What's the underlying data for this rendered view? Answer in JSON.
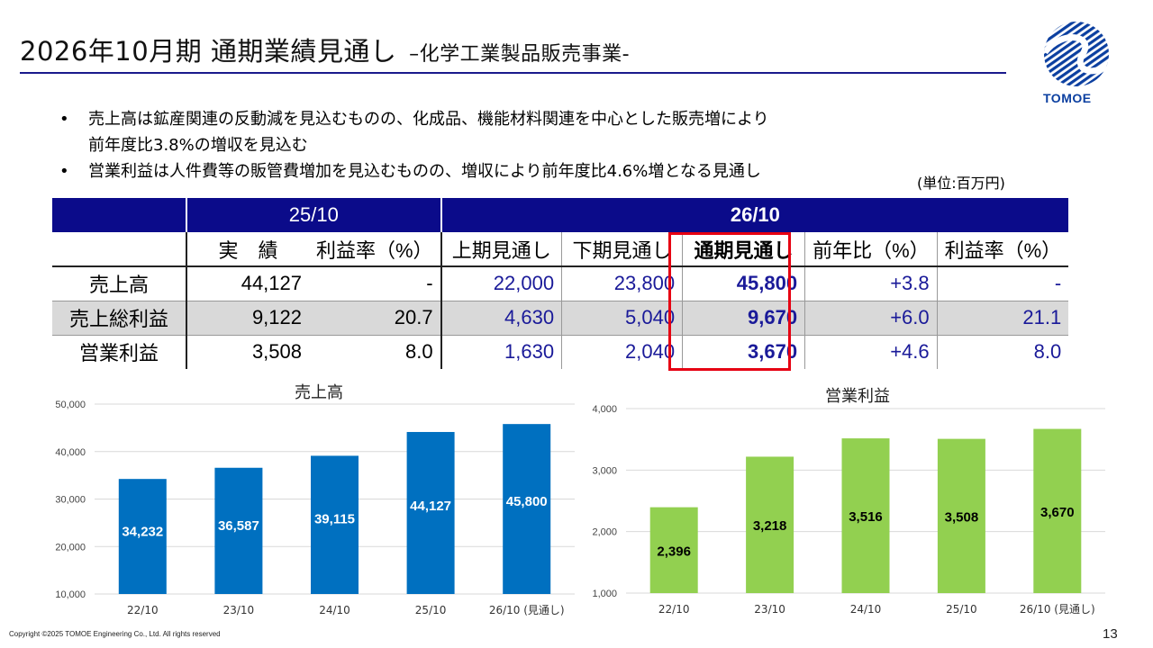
{
  "header": {
    "title": "2026年10月期 通期業績見通し",
    "subtitle": "–化学工業製品販売事業-"
  },
  "logo": {
    "text": "TOMOE",
    "color": "#0b3fa0"
  },
  "bullets": [
    "売上高は鉱産関連の反動減を見込むものの、化成品、機能材料関連を中心とした販売増により",
    "前年度比3.8%の増収を見込む",
    "営業利益は人件費等の販管費増加を見込むものの、増収により前年度比4.6%増となる見通し"
  ],
  "bullet_mark": "•",
  "unit": "(単位:百万円)",
  "table": {
    "group_headers": [
      "25/10",
      "26/10"
    ],
    "columns": [
      "実　績",
      "利益率（%）",
      "上期見通し",
      "下期見通し",
      "通期見通し",
      "前年比（%）",
      "利益率（%）"
    ],
    "rows": [
      {
        "label": "売上高",
        "cells": [
          "44,127",
          "-",
          "22,000",
          "23,800",
          "45,800",
          "+3.8",
          "-"
        ]
      },
      {
        "label": "売上総利益",
        "cells": [
          "9,122",
          "20.7",
          "4,630",
          "5,040",
          "9,670",
          "+6.0",
          "21.1"
        ]
      },
      {
        "label": "営業利益",
        "cells": [
          "3,508",
          "8.0",
          "1,630",
          "2,040",
          "3,670",
          "+4.6",
          "8.0"
        ]
      }
    ],
    "header_color": "#0b0b8a",
    "highlight_color": "#e60012"
  },
  "chart_data": [
    {
      "type": "bar",
      "title": "売上高",
      "categories": [
        "22/10",
        "23/10",
        "24/10",
        "25/10",
        "26/10 (見通し)"
      ],
      "values": [
        34232,
        36587,
        39115,
        44127,
        45800
      ],
      "value_labels": [
        "34,232",
        "36,587",
        "39,115",
        "44,127",
        "45,800"
      ],
      "ylim": [
        10000,
        50000
      ],
      "yticks": [
        "10,000",
        "20,000",
        "30,000",
        "40,000",
        "50,000"
      ],
      "tick_values": [
        10000,
        20000,
        30000,
        40000,
        50000
      ],
      "grid": true,
      "color": "#0070c0",
      "label_color": "#ffffff"
    },
    {
      "type": "bar",
      "title": "営業利益",
      "categories": [
        "22/10",
        "23/10",
        "24/10",
        "25/10",
        "26/10 (見通し)"
      ],
      "values": [
        2396,
        3218,
        3516,
        3508,
        3670
      ],
      "value_labels": [
        "2,396",
        "3,218",
        "3,516",
        "3,508",
        "3,670"
      ],
      "ylim": [
        1000,
        4000
      ],
      "yticks": [
        "1,000",
        "2,000",
        "3,000",
        "4,000"
      ],
      "tick_values": [
        1000,
        2000,
        3000,
        4000
      ],
      "grid": true,
      "color": "#92d050",
      "label_color": "#000000"
    }
  ],
  "footer": {
    "copyright": "Copyright ©2025 TOMOE Engineering Co., Ltd. All rights reserved",
    "page_number": "13"
  }
}
